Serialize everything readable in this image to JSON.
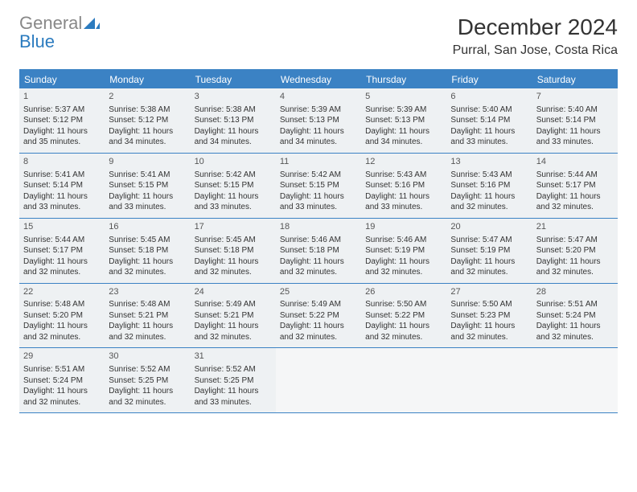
{
  "logo": {
    "general": "General",
    "blue": "Blue"
  },
  "title": "December 2024",
  "location": "Purral, San Jose, Costa Rica",
  "colors": {
    "header_bg": "#3b82c4",
    "header_text": "#ffffff",
    "cell_bg": "#eef1f3",
    "empty_bg": "#f5f6f7",
    "border": "#3b82c4",
    "logo_gray": "#888888",
    "logo_blue": "#2b7bbf"
  },
  "day_headers": [
    "Sunday",
    "Monday",
    "Tuesday",
    "Wednesday",
    "Thursday",
    "Friday",
    "Saturday"
  ],
  "days": [
    {
      "n": "1",
      "sr": "5:37 AM",
      "ss": "5:12 PM",
      "dl": "11 hours and 35 minutes."
    },
    {
      "n": "2",
      "sr": "5:38 AM",
      "ss": "5:12 PM",
      "dl": "11 hours and 34 minutes."
    },
    {
      "n": "3",
      "sr": "5:38 AM",
      "ss": "5:13 PM",
      "dl": "11 hours and 34 minutes."
    },
    {
      "n": "4",
      "sr": "5:39 AM",
      "ss": "5:13 PM",
      "dl": "11 hours and 34 minutes."
    },
    {
      "n": "5",
      "sr": "5:39 AM",
      "ss": "5:13 PM",
      "dl": "11 hours and 34 minutes."
    },
    {
      "n": "6",
      "sr": "5:40 AM",
      "ss": "5:14 PM",
      "dl": "11 hours and 33 minutes."
    },
    {
      "n": "7",
      "sr": "5:40 AM",
      "ss": "5:14 PM",
      "dl": "11 hours and 33 minutes."
    },
    {
      "n": "8",
      "sr": "5:41 AM",
      "ss": "5:14 PM",
      "dl": "11 hours and 33 minutes."
    },
    {
      "n": "9",
      "sr": "5:41 AM",
      "ss": "5:15 PM",
      "dl": "11 hours and 33 minutes."
    },
    {
      "n": "10",
      "sr": "5:42 AM",
      "ss": "5:15 PM",
      "dl": "11 hours and 33 minutes."
    },
    {
      "n": "11",
      "sr": "5:42 AM",
      "ss": "5:15 PM",
      "dl": "11 hours and 33 minutes."
    },
    {
      "n": "12",
      "sr": "5:43 AM",
      "ss": "5:16 PM",
      "dl": "11 hours and 33 minutes."
    },
    {
      "n": "13",
      "sr": "5:43 AM",
      "ss": "5:16 PM",
      "dl": "11 hours and 32 minutes."
    },
    {
      "n": "14",
      "sr": "5:44 AM",
      "ss": "5:17 PM",
      "dl": "11 hours and 32 minutes."
    },
    {
      "n": "15",
      "sr": "5:44 AM",
      "ss": "5:17 PM",
      "dl": "11 hours and 32 minutes."
    },
    {
      "n": "16",
      "sr": "5:45 AM",
      "ss": "5:18 PM",
      "dl": "11 hours and 32 minutes."
    },
    {
      "n": "17",
      "sr": "5:45 AM",
      "ss": "5:18 PM",
      "dl": "11 hours and 32 minutes."
    },
    {
      "n": "18",
      "sr": "5:46 AM",
      "ss": "5:18 PM",
      "dl": "11 hours and 32 minutes."
    },
    {
      "n": "19",
      "sr": "5:46 AM",
      "ss": "5:19 PM",
      "dl": "11 hours and 32 minutes."
    },
    {
      "n": "20",
      "sr": "5:47 AM",
      "ss": "5:19 PM",
      "dl": "11 hours and 32 minutes."
    },
    {
      "n": "21",
      "sr": "5:47 AM",
      "ss": "5:20 PM",
      "dl": "11 hours and 32 minutes."
    },
    {
      "n": "22",
      "sr": "5:48 AM",
      "ss": "5:20 PM",
      "dl": "11 hours and 32 minutes."
    },
    {
      "n": "23",
      "sr": "5:48 AM",
      "ss": "5:21 PM",
      "dl": "11 hours and 32 minutes."
    },
    {
      "n": "24",
      "sr": "5:49 AM",
      "ss": "5:21 PM",
      "dl": "11 hours and 32 minutes."
    },
    {
      "n": "25",
      "sr": "5:49 AM",
      "ss": "5:22 PM",
      "dl": "11 hours and 32 minutes."
    },
    {
      "n": "26",
      "sr": "5:50 AM",
      "ss": "5:22 PM",
      "dl": "11 hours and 32 minutes."
    },
    {
      "n": "27",
      "sr": "5:50 AM",
      "ss": "5:23 PM",
      "dl": "11 hours and 32 minutes."
    },
    {
      "n": "28",
      "sr": "5:51 AM",
      "ss": "5:24 PM",
      "dl": "11 hours and 32 minutes."
    },
    {
      "n": "29",
      "sr": "5:51 AM",
      "ss": "5:24 PM",
      "dl": "11 hours and 32 minutes."
    },
    {
      "n": "30",
      "sr": "5:52 AM",
      "ss": "5:25 PM",
      "dl": "11 hours and 32 minutes."
    },
    {
      "n": "31",
      "sr": "5:52 AM",
      "ss": "5:25 PM",
      "dl": "11 hours and 33 minutes."
    }
  ],
  "labels": {
    "sunrise": "Sunrise:",
    "sunset": "Sunset:",
    "daylight": "Daylight:"
  },
  "trailing_empty": 4
}
